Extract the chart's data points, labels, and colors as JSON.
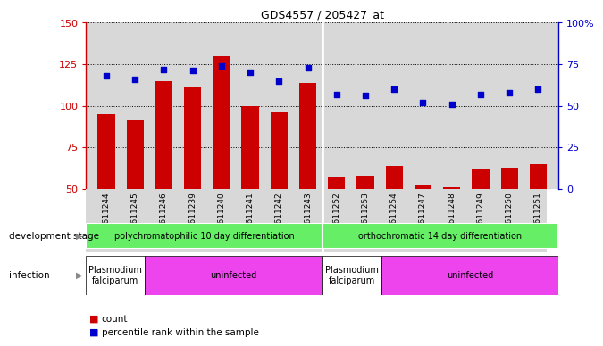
{
  "title": "GDS4557 / 205427_at",
  "samples": [
    "GSM611244",
    "GSM611245",
    "GSM611246",
    "GSM611239",
    "GSM611240",
    "GSM611241",
    "GSM611242",
    "GSM611243",
    "GSM611252",
    "GSM611253",
    "GSM611254",
    "GSM611247",
    "GSM611248",
    "GSM611249",
    "GSM611250",
    "GSM611251"
  ],
  "counts": [
    95,
    91,
    115,
    111,
    130,
    100,
    96,
    114,
    57,
    58,
    64,
    52,
    51,
    62,
    63,
    65
  ],
  "percentiles": [
    68,
    66,
    72,
    71,
    74,
    70,
    65,
    73,
    57,
    56,
    60,
    52,
    51,
    57,
    58,
    60
  ],
  "ylim_left": [
    50,
    150
  ],
  "ylim_right": [
    0,
    100
  ],
  "yticks_left": [
    50,
    75,
    100,
    125,
    150
  ],
  "yticks_right": [
    0,
    25,
    50,
    75,
    100
  ],
  "bar_color": "#cc0000",
  "dot_color": "#0000cc",
  "plot_bg_color": "#d8d8d8",
  "dev_stage_color": "#66ee66",
  "infection_falciparum_color": "#ffffff",
  "infection_uninfected_color": "#ee44ee",
  "left_axis_color": "#cc0000",
  "right_axis_color": "#0000cc",
  "dev_stage_groups": [
    {
      "label": "polychromatophilic 10 day differentiation",
      "start": 0,
      "end": 7
    },
    {
      "label": "orthochromatic 14 day differentiation",
      "start": 8,
      "end": 15
    }
  ],
  "infection_groups": [
    {
      "label": "Plasmodium\nfalciparum",
      "start": 0,
      "end": 1,
      "color": "#ffffff"
    },
    {
      "label": "uninfected",
      "start": 2,
      "end": 7,
      "color": "#ee44ee"
    },
    {
      "label": "Plasmodium\nfalciparum",
      "start": 8,
      "end": 9,
      "color": "#ffffff"
    },
    {
      "label": "uninfected",
      "start": 10,
      "end": 15,
      "color": "#ee44ee"
    }
  ]
}
